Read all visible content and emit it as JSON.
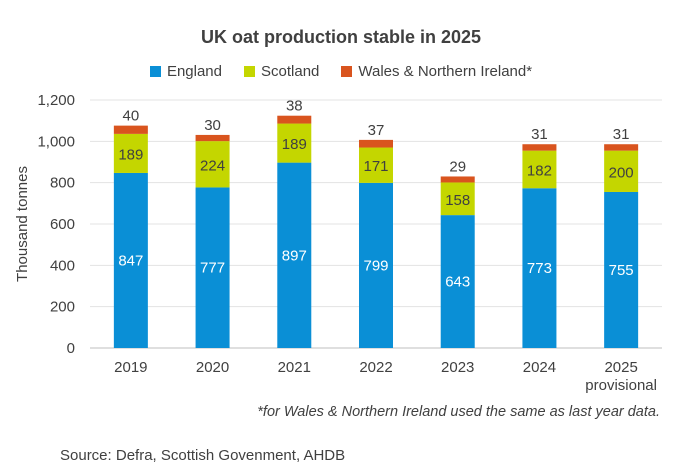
{
  "chart_data": {
    "type": "bar",
    "stacked": true,
    "title": "UK oat production stable in 2025",
    "ylabel": "Thousand tonnes",
    "xlabel": "",
    "ylim": [
      0,
      1200
    ],
    "yticks": [
      0,
      200,
      400,
      600,
      800,
      1000,
      1200
    ],
    "ytick_labels": [
      "0",
      "200",
      "400",
      "600",
      "800",
      "1,000",
      "1,200"
    ],
    "categories": [
      "2019",
      "2020",
      "2021",
      "2022",
      "2023",
      "2024",
      "2025"
    ],
    "category_sublabels": [
      "",
      "",
      "",
      "",
      "",
      "",
      "provisional"
    ],
    "series": [
      {
        "name": "England",
        "color": "#0a8fd6",
        "values": [
          847,
          777,
          897,
          799,
          643,
          773,
          755
        ]
      },
      {
        "name": "Scotland",
        "color": "#c4d600",
        "values": [
          189,
          224,
          189,
          171,
          158,
          182,
          200
        ]
      },
      {
        "name": "Wales & Northern Ireland*",
        "color": "#d9541e",
        "values": [
          40,
          30,
          38,
          37,
          29,
          31,
          31
        ]
      }
    ],
    "legend_position": "top",
    "grid": true
  },
  "footnote": "*for Wales & Northern Ireland used the same as last year data.",
  "source": "Source: Defra, Scottish Govenment, AHDB"
}
